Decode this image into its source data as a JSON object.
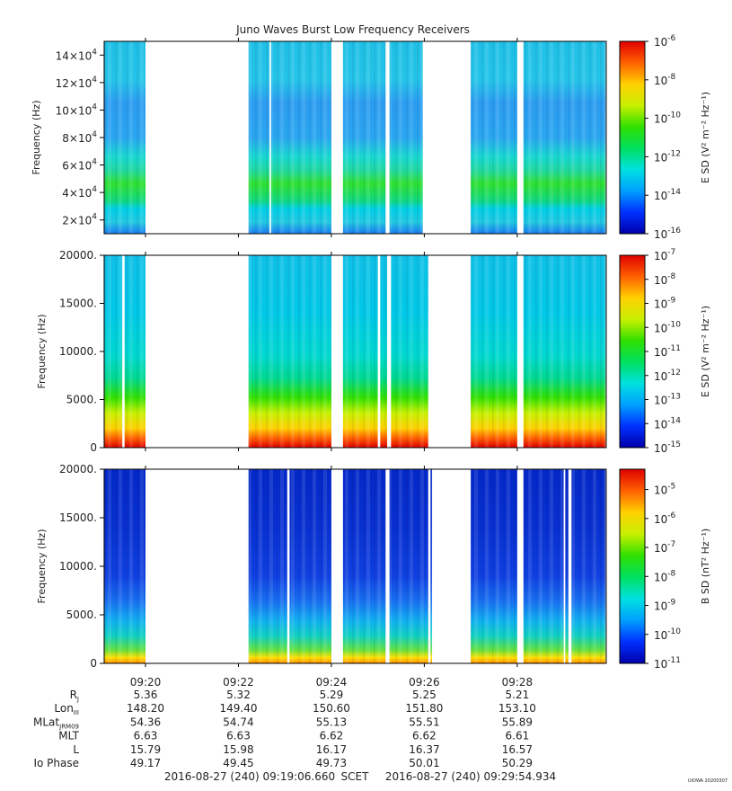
{
  "title": "Juno Waves Burst Low Frequency Receivers",
  "colors": {
    "colormap": [
      "#0000aa",
      "#0030ff",
      "#00a0ff",
      "#00e0e0",
      "#00e060",
      "#30e000",
      "#c8f000",
      "#ffd000",
      "#ff6000",
      "#e00000"
    ],
    "gap": "#ffffff",
    "frame": "#000000"
  },
  "time_axis": {
    "start": "09:19:06.660",
    "end": "09:29:54.934",
    "tick_labels": [
      "09:20",
      "09:22",
      "09:24",
      "09:26",
      "09:28"
    ]
  },
  "ephemeris": {
    "rows": [
      {
        "label": "R",
        "sub": "J",
        "values": [
          "5.36",
          "5.32",
          "5.29",
          "5.25",
          "5.21"
        ]
      },
      {
        "label": "Lon",
        "sub": "III",
        "values": [
          "148.20",
          "149.40",
          "150.60",
          "151.80",
          "153.10"
        ]
      },
      {
        "label": "MLat",
        "sub": "JRM09",
        "values": [
          "54.36",
          "54.74",
          "55.13",
          "55.51",
          "55.89"
        ]
      },
      {
        "label": "MLT",
        "sub": "",
        "values": [
          "6.63",
          "6.63",
          "6.62",
          "6.62",
          "6.61"
        ]
      },
      {
        "label": "L",
        "sub": "",
        "values": [
          "15.79",
          "15.98",
          "16.17",
          "16.37",
          "16.57"
        ]
      },
      {
        "label": "Io Phase",
        "sub": "",
        "values": [
          "49.17",
          "49.45",
          "49.73",
          "50.01",
          "50.29"
        ]
      }
    ]
  },
  "footer": {
    "start_label": "2016-08-27 (240) 09:19:06.660",
    "scet": "SCET",
    "end_label": "2016-08-27 (240) 09:29:54.934",
    "stamp": "UIOWA 20200307"
  },
  "chart_data": [
    {
      "type": "heatmap",
      "panel": "top",
      "ylabel": "Frequency (Hz)",
      "ylim": [
        10000,
        150000
      ],
      "yticks": [
        20000,
        40000,
        60000,
        80000,
        100000,
        120000,
        140000
      ],
      "ytick_labels": [
        {
          "m": "2",
          "e": "4"
        },
        {
          "m": "4",
          "e": "4"
        },
        {
          "m": "6",
          "e": "4"
        },
        {
          "m": "8",
          "e": "4"
        },
        {
          "m": "10",
          "e": "4"
        },
        {
          "m": "12",
          "e": "4"
        },
        {
          "m": "14",
          "e": "4"
        }
      ],
      "data_intervals": [
        [
          "09:19:06",
          "09:20:00"
        ],
        [
          "09:22:13",
          "09:22:40"
        ],
        [
          "09:22:42",
          "09:24:00"
        ],
        [
          "09:24:15",
          "09:25:10"
        ],
        [
          "09:25:15",
          "09:25:58"
        ],
        [
          "09:27:00",
          "09:28:00"
        ],
        [
          "09:28:08",
          "09:29:54"
        ]
      ],
      "colorbar": {
        "label": "E SD (V² m⁻² Hz⁻¹)",
        "range_log10": [
          -16,
          -6
        ],
        "tick_exponents": [
          "-6",
          "-8",
          "-10",
          "-12",
          "-14",
          "-16"
        ],
        "tick_values": [
          -6,
          -8,
          -10,
          -12,
          -14,
          -16
        ]
      }
    },
    {
      "type": "heatmap",
      "panel": "middle",
      "ylabel": "Frequency (Hz)",
      "ylim": [
        0,
        20000
      ],
      "yticks": [
        0,
        5000,
        10000,
        15000,
        20000
      ],
      "ytick_labels": [
        "0",
        "5000.",
        "10000.",
        "15000.",
        "20000."
      ],
      "data_intervals": [
        [
          "09:19:06",
          "09:19:30"
        ],
        [
          "09:19:33",
          "09:20:00"
        ],
        [
          "09:22:13",
          "09:24:00"
        ],
        [
          "09:24:15",
          "09:25:00"
        ],
        [
          "09:25:03",
          "09:25:12"
        ],
        [
          "09:25:17",
          "09:26:05"
        ],
        [
          "09:27:00",
          "09:28:00"
        ],
        [
          "09:28:08",
          "09:29:54"
        ]
      ],
      "colorbar": {
        "label": "E SD (V² m⁻² Hz⁻¹)",
        "range_log10": [
          -15,
          -7
        ],
        "tick_exponents": [
          "-7",
          "-8",
          "-9",
          "-10",
          "-11",
          "-12",
          "-13",
          "-14",
          "-15"
        ],
        "tick_values": [
          -7,
          -8,
          -9,
          -10,
          -11,
          -12,
          -13,
          -14,
          -15
        ]
      }
    },
    {
      "type": "heatmap",
      "panel": "bottom",
      "ylabel": "Frequency (Hz)",
      "ylim": [
        0,
        20000
      ],
      "yticks": [
        0,
        5000,
        10000,
        15000,
        20000
      ],
      "ytick_labels": [
        "0",
        "5000.",
        "10000.",
        "15000.",
        "20000."
      ],
      "data_intervals": [
        [
          "09:19:06",
          "09:20:00"
        ],
        [
          "09:22:13",
          "09:23:03"
        ],
        [
          "09:23:06",
          "09:24:00"
        ],
        [
          "09:24:15",
          "09:25:10"
        ],
        [
          "09:25:15",
          "09:26:05"
        ],
        [
          "09:26:08",
          "09:26:10"
        ],
        [
          "09:27:00",
          "09:28:00"
        ],
        [
          "09:28:08",
          "09:29:00"
        ],
        [
          "09:29:02",
          "09:29:06"
        ],
        [
          "09:29:10",
          "09:29:54"
        ]
      ],
      "colorbar": {
        "label": "B SD (nT² Hz⁻¹)",
        "range_log10": [
          -11,
          -4.3
        ],
        "tick_exponents": [
          "-5",
          "-6",
          "-7",
          "-8",
          "-9",
          "-10",
          "-11"
        ],
        "tick_values": [
          -5,
          -6,
          -7,
          -8,
          -9,
          -10,
          -11
        ]
      }
    }
  ]
}
